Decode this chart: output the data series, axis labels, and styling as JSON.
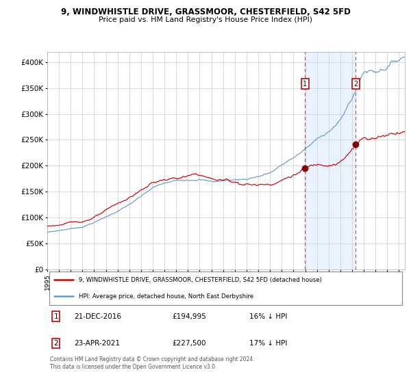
{
  "title_line1": "9, WINDWHISTLE DRIVE, GRASSMOOR, CHESTERFIELD, S42 5FD",
  "title_line2": "Price paid vs. HM Land Registry's House Price Index (HPI)",
  "ylabel_ticks": [
    "£0",
    "£50K",
    "£100K",
    "£150K",
    "£200K",
    "£250K",
    "£300K",
    "£350K",
    "£400K"
  ],
  "ytick_values": [
    0,
    50000,
    100000,
    150000,
    200000,
    250000,
    300000,
    350000,
    400000
  ],
  "ylim": [
    0,
    420000
  ],
  "xlim_start": 1995.0,
  "xlim_end": 2025.5,
  "red_line_color": "#cc0000",
  "blue_line_color": "#6699cc",
  "marker_color": "#880000",
  "dashed_line_color": "#ff4444",
  "shade_color": "#ddeeff",
  "transaction1_date": 2016.97,
  "transaction1_value": 194995,
  "transaction1_label": "1",
  "transaction2_date": 2021.31,
  "transaction2_value": 227500,
  "transaction2_label": "2",
  "legend_line1": "9, WINDWHISTLE DRIVE, GRASSMOOR, CHESTERFIELD, S42 5FD (detached house)",
  "legend_line2": "HPI: Average price, detached house, North East Derbyshire",
  "table_row1": [
    "1",
    "21-DEC-2016",
    "£194,995",
    "16% ↓ HPI"
  ],
  "table_row2": [
    "2",
    "23-APR-2021",
    "£227,500",
    "17% ↓ HPI"
  ],
  "footer": "Contains HM Land Registry data © Crown copyright and database right 2024.\nThis data is licensed under the Open Government Licence v3.0.",
  "background_color": "#ffffff",
  "grid_color": "#cccccc"
}
